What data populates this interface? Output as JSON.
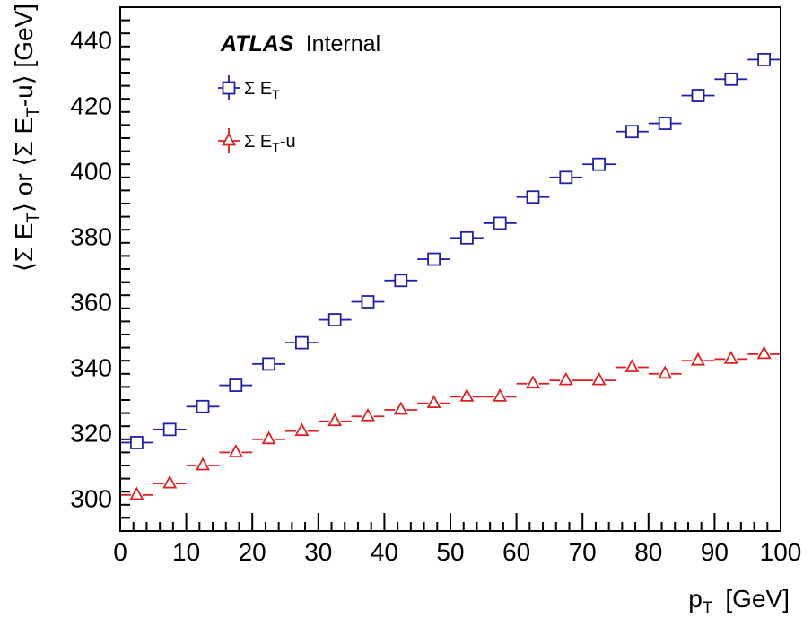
{
  "chart_data": {
    "type": "scatter",
    "label": {
      "bold": "ATLAS",
      "rest": "Internal"
    },
    "xlabel": {
      "main": "p",
      "sub": "T",
      "unit": "[GeV]"
    },
    "ylabel": {
      "p1": "⟨Σ E",
      "s1": "T",
      "p2": "⟩ or ⟨Σ E",
      "s2": "T",
      "p3": "-u⟩ [GeV]"
    },
    "xlim": [
      0,
      100
    ],
    "ylim": [
      290,
      450
    ],
    "x_ticks": [
      0,
      10,
      20,
      30,
      40,
      50,
      60,
      70,
      80,
      90,
      100
    ],
    "y_ticks": [
      300,
      320,
      340,
      360,
      380,
      400,
      420,
      440
    ],
    "x_bin_width": 5,
    "grid": false,
    "legend_position": "top-left",
    "series": [
      {
        "name": "Σ E",
        "name_sub": "T",
        "marker": "open-square",
        "color": "#1f1fb0",
        "x": [
          2.5,
          7.5,
          12.5,
          17.5,
          22.5,
          27.5,
          32.5,
          37.5,
          42.5,
          47.5,
          52.5,
          57.5,
          62.5,
          67.5,
          72.5,
          77.5,
          82.5,
          87.5,
          92.5,
          97.5
        ],
        "y": [
          317,
          321,
          328,
          334.5,
          341,
          347.5,
          354.5,
          360,
          366.5,
          373,
          379.5,
          384,
          392,
          398,
          402,
          412,
          414.5,
          423,
          428,
          434
        ]
      },
      {
        "name": "Σ E",
        "name_sub": "T",
        "name_suffix": "-u",
        "marker": "open-triangle",
        "color": "#e02020",
        "x": [
          2.5,
          7.5,
          12.5,
          17.5,
          22.5,
          27.5,
          32.5,
          37.5,
          42.5,
          47.5,
          52.5,
          57.5,
          62.5,
          67.5,
          72.5,
          77.5,
          82.5,
          87.5,
          92.5,
          97.5
        ],
        "y": [
          301,
          304.5,
          310,
          314,
          318,
          320.5,
          323.5,
          325,
          327,
          329,
          331,
          331,
          335,
          336,
          336,
          340,
          338,
          342,
          342.5,
          344
        ]
      }
    ]
  }
}
